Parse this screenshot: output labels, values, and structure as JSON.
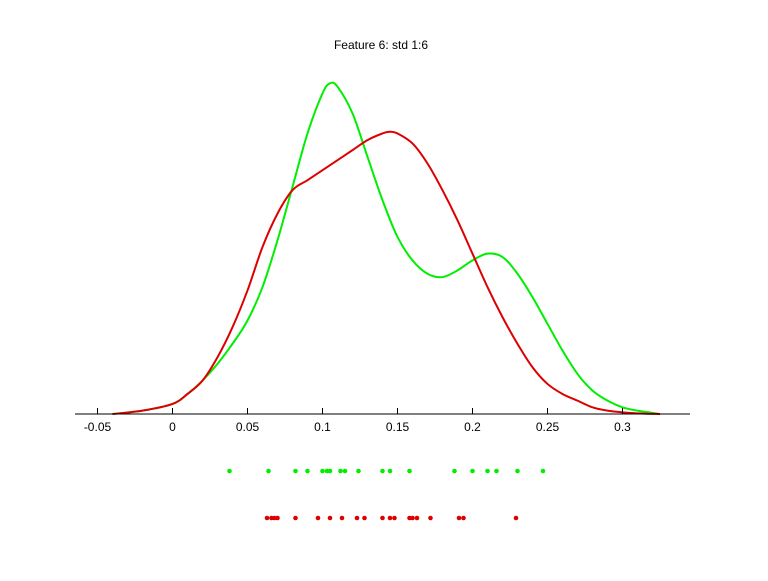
{
  "chart_data": {
    "type": "line",
    "title": "Feature 6: std 1:6",
    "xlabel": "",
    "ylabel": "",
    "xlim": [
      -0.065,
      0.345
    ],
    "ylim": [
      0,
      1
    ],
    "x_ticks": [
      -0.05,
      0,
      0.05,
      0.1,
      0.15,
      0.2,
      0.25,
      0.3
    ],
    "x_tick_labels": [
      "-0.05",
      "0",
      "0.05",
      "0.1",
      "0.15",
      "0.2",
      "0.25",
      "0.3"
    ],
    "grid": false,
    "y_axis_visible": false,
    "legend": "none",
    "series": [
      {
        "color": "#00ee00",
        "x": [
          -0.04,
          -0.02,
          0.0,
          0.01,
          0.02,
          0.03,
          0.04,
          0.05,
          0.06,
          0.07,
          0.08,
          0.09,
          0.1,
          0.105,
          0.11,
          0.12,
          0.13,
          0.14,
          0.15,
          0.16,
          0.17,
          0.18,
          0.19,
          0.2,
          0.21,
          0.22,
          0.23,
          0.24,
          0.25,
          0.26,
          0.27,
          0.28,
          0.29,
          0.3,
          0.31,
          0.325
        ],
        "y": [
          0.0,
          0.01,
          0.03,
          0.06,
          0.1,
          0.15,
          0.21,
          0.28,
          0.38,
          0.52,
          0.68,
          0.84,
          0.96,
          0.99,
          0.98,
          0.9,
          0.77,
          0.64,
          0.53,
          0.46,
          0.42,
          0.41,
          0.43,
          0.46,
          0.48,
          0.47,
          0.42,
          0.35,
          0.27,
          0.19,
          0.12,
          0.07,
          0.04,
          0.02,
          0.01,
          0.0
        ]
      },
      {
        "color": "#dd0000",
        "x": [
          -0.04,
          -0.02,
          0.0,
          0.01,
          0.02,
          0.03,
          0.04,
          0.05,
          0.06,
          0.07,
          0.08,
          0.09,
          0.1,
          0.11,
          0.12,
          0.13,
          0.14,
          0.145,
          0.15,
          0.16,
          0.17,
          0.18,
          0.19,
          0.2,
          0.21,
          0.22,
          0.23,
          0.24,
          0.25,
          0.26,
          0.27,
          0.28,
          0.29,
          0.3,
          0.31,
          0.325
        ],
        "y": [
          0.0,
          0.01,
          0.03,
          0.06,
          0.1,
          0.17,
          0.26,
          0.37,
          0.5,
          0.6,
          0.67,
          0.7,
          0.73,
          0.76,
          0.79,
          0.82,
          0.84,
          0.845,
          0.84,
          0.81,
          0.75,
          0.67,
          0.58,
          0.48,
          0.38,
          0.29,
          0.21,
          0.14,
          0.09,
          0.06,
          0.04,
          0.02,
          0.01,
          0.005,
          0.002,
          0.0
        ]
      }
    ],
    "scatter_rows": [
      {
        "color": "#00ee00",
        "x": [
          0.038,
          0.064,
          0.082,
          0.09,
          0.1,
          0.103,
          0.105,
          0.112,
          0.115,
          0.124,
          0.14,
          0.145,
          0.158,
          0.188,
          0.2,
          0.21,
          0.216,
          0.23,
          0.247
        ]
      },
      {
        "color": "#dd0000",
        "x": [
          0.063,
          0.066,
          0.068,
          0.07,
          0.082,
          0.097,
          0.105,
          0.113,
          0.123,
          0.128,
          0.14,
          0.145,
          0.148,
          0.158,
          0.16,
          0.163,
          0.172,
          0.191,
          0.194,
          0.229
        ]
      }
    ]
  }
}
